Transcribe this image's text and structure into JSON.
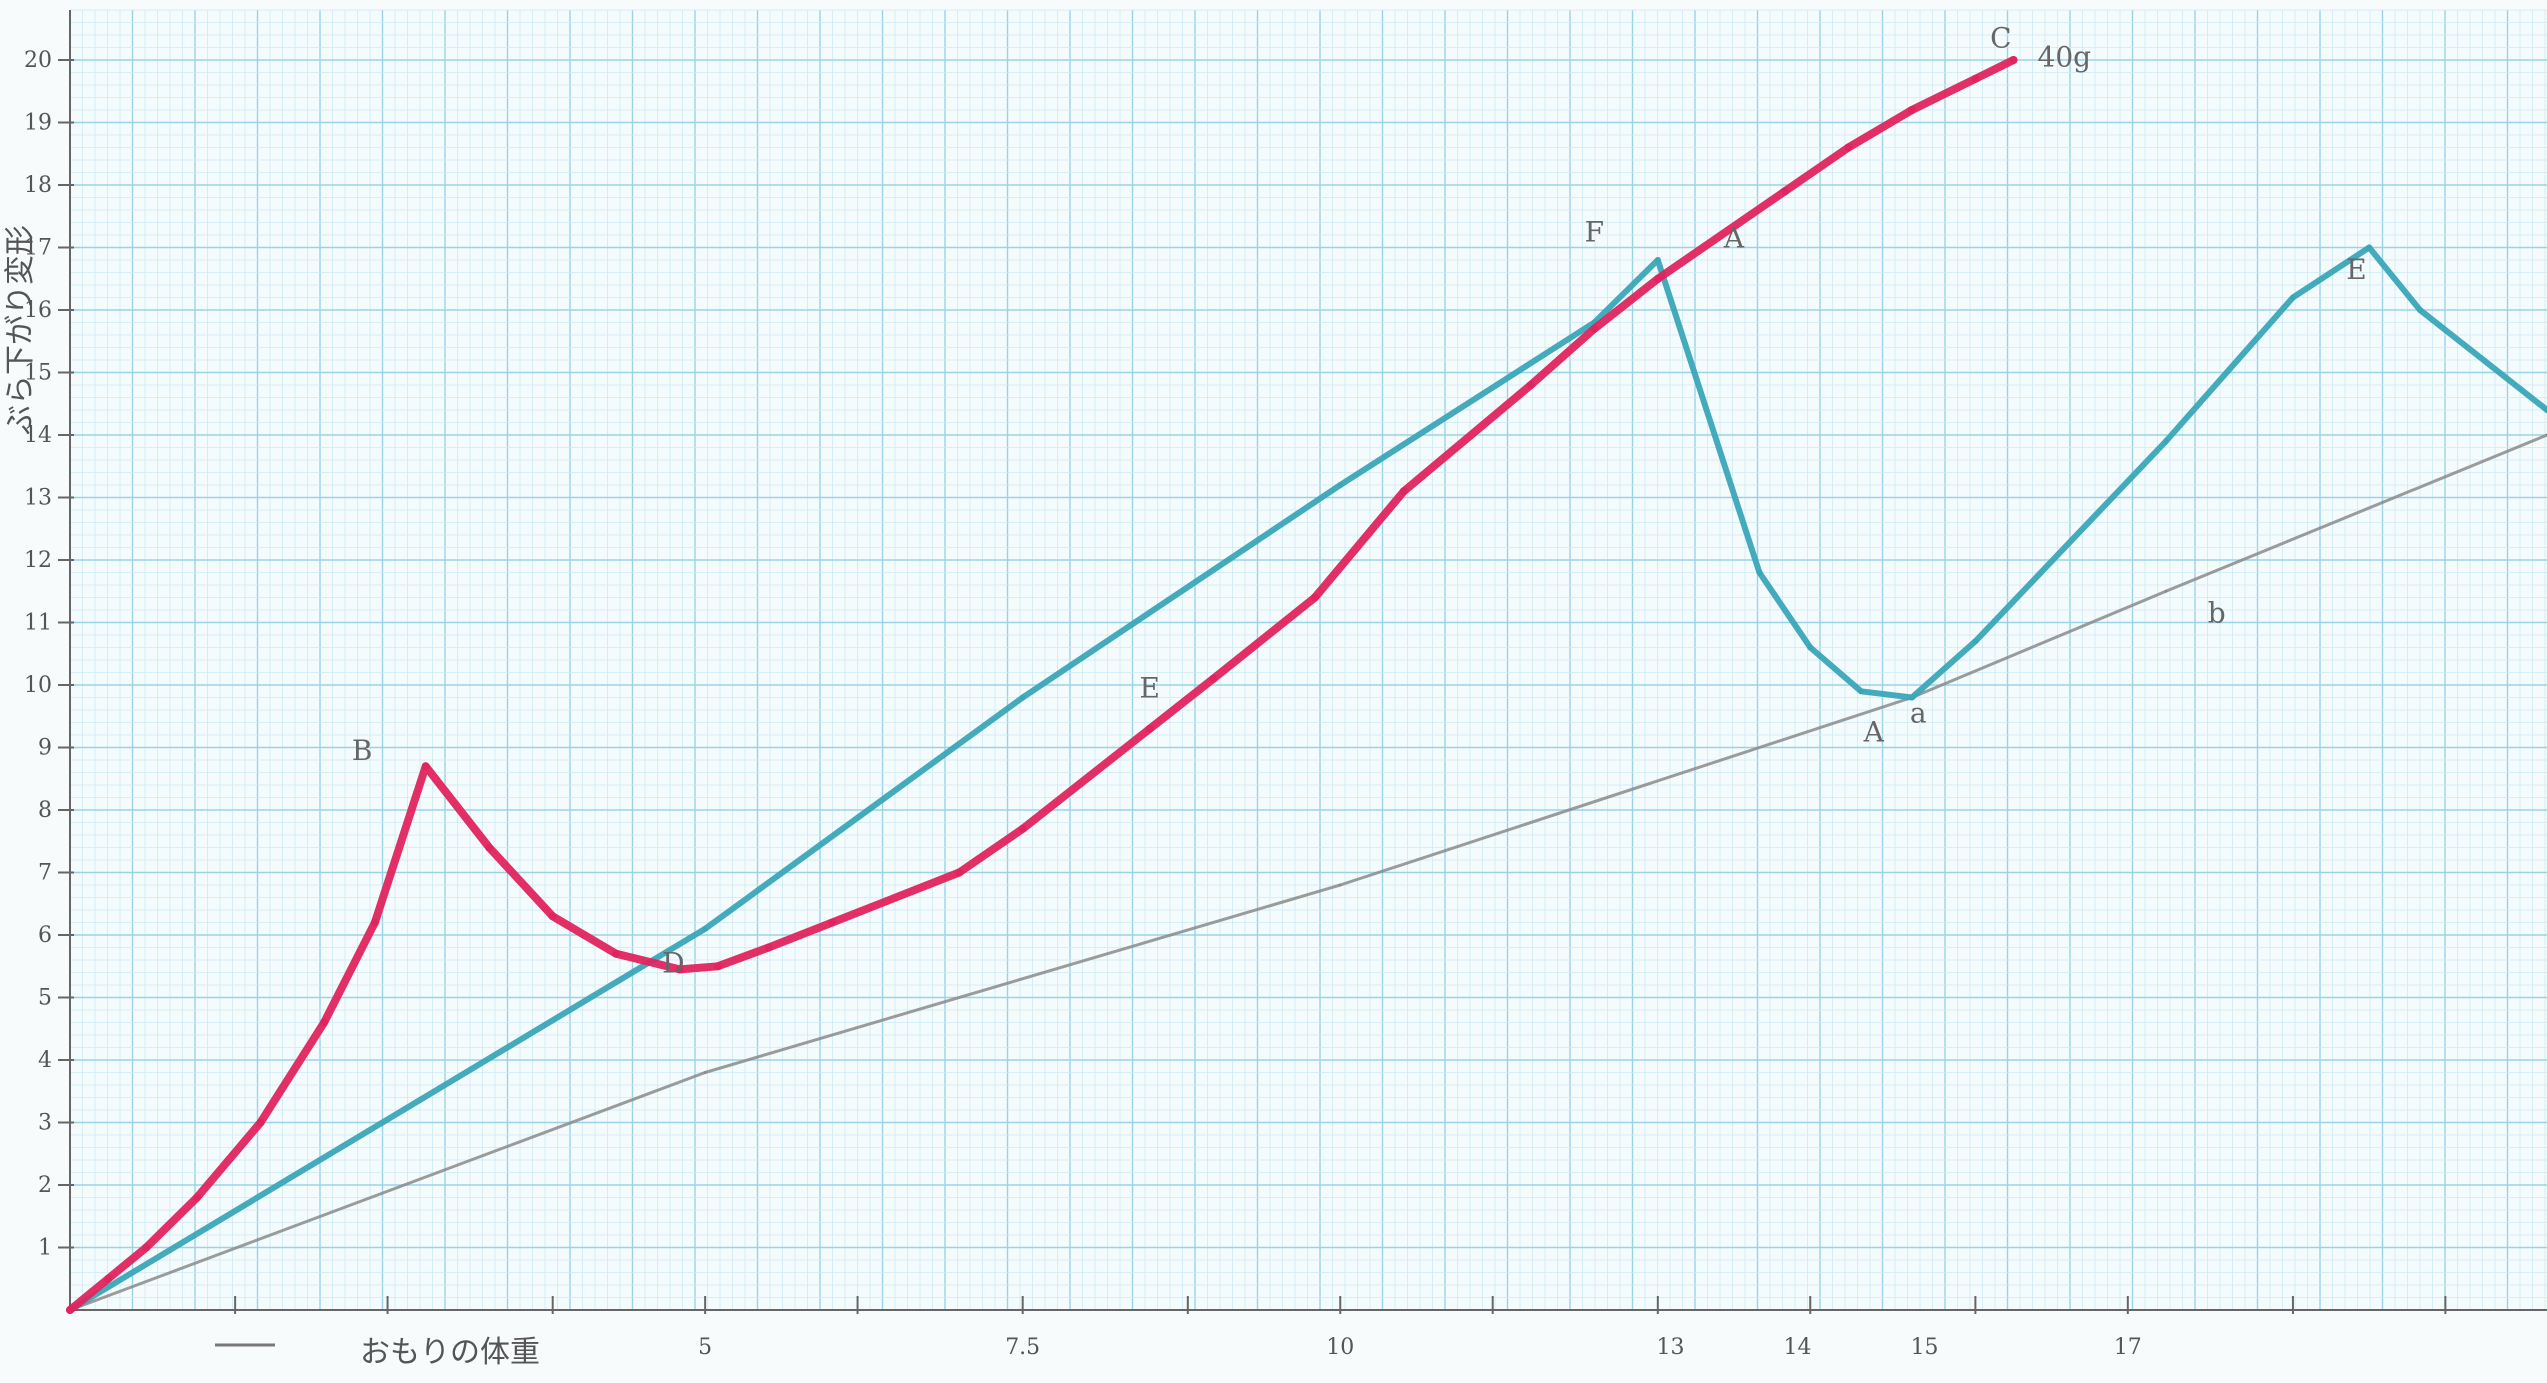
{
  "chart_data": {
    "type": "line",
    "ylabel": "ぶら下がり変形",
    "xlabel": "おもりの体重",
    "y_ticks": [
      "1",
      "2",
      "3",
      "4",
      "5",
      "6",
      "7",
      "8",
      "9",
      "10",
      "11",
      "12",
      "13",
      "14",
      "15",
      "16",
      "17",
      "18",
      "19",
      "20"
    ],
    "x_ticks": [
      "5",
      "7.5",
      "10",
      "13",
      "14",
      "15",
      "17"
    ],
    "xlim": [
      0,
      19.5
    ],
    "ylim": [
      0,
      20.8
    ],
    "grid": true,
    "colors": {
      "red": "#e0245e",
      "teal": "#3aa6b8",
      "gray": "#8a8a8a",
      "grid_minor": "#cfeaf3",
      "grid_major": "#9bd3e6"
    },
    "series": [
      {
        "id": "red",
        "color": "#e0245e",
        "x": [
          0,
          0.3,
          0.6,
          1.0,
          1.5,
          2.0,
          2.4,
          2.8,
          3.3,
          3.8,
          4.3,
          4.8,
          5.1,
          5.5,
          6.0,
          7.0,
          7.5,
          8.5,
          9.0,
          9.8,
          10.5,
          11.5,
          12.0,
          12.5,
          13.5,
          14.0,
          14.5,
          15.0,
          15.3
        ],
        "y": [
          0,
          0.5,
          1.0,
          1.8,
          3.0,
          4.6,
          6.2,
          8.7,
          7.4,
          6.3,
          5.7,
          5.45,
          5.5,
          5.8,
          6.2,
          7.0,
          7.7,
          9.3,
          10.1,
          11.4,
          13.1,
          14.8,
          15.7,
          16.5,
          17.9,
          18.6,
          19.2,
          19.7,
          20.0
        ]
      },
      {
        "id": "teal",
        "color": "#3aa6b8",
        "x": [
          0,
          5.0,
          7.5,
          10.0,
          12.0,
          12.5,
          13.3,
          13.7,
          14.1,
          14.5,
          15.0,
          16.5,
          17.5,
          18.1,
          18.5,
          19.5
        ],
        "y": [
          0,
          6.1,
          9.8,
          13.2,
          15.8,
          16.8,
          11.8,
          10.6,
          9.9,
          9.8,
          10.7,
          13.9,
          16.2,
          17.0,
          16.0,
          14.4
        ]
      },
      {
        "id": "gray",
        "color": "#8a8a8a",
        "x": [
          0,
          5.0,
          10.0,
          14.5,
          16.5,
          19.5
        ],
        "y": [
          0,
          3.8,
          6.8,
          9.8,
          11.5,
          14.0
        ]
      }
    ],
    "annotations": [
      {
        "text": "B",
        "x": 2.3,
        "y": 8.8
      },
      {
        "text": "D",
        "x": 4.75,
        "y": 5.4
      },
      {
        "text": "E",
        "x": 8.5,
        "y": 9.8
      },
      {
        "text": "F",
        "x": 12.0,
        "y": 17.1
      },
      {
        "text": "A",
        "x": 13.1,
        "y": 17.0
      },
      {
        "text": "C",
        "x": 15.2,
        "y": 20.2
      },
      {
        "text": "40g",
        "x": 15.7,
        "y": 19.9
      },
      {
        "text": "A",
        "x": 14.2,
        "y": 9.1
      },
      {
        "text": "a",
        "x": 14.55,
        "y": 9.4
      },
      {
        "text": "b",
        "x": 16.9,
        "y": 11.0
      },
      {
        "text": "E",
        "x": 18.0,
        "y": 16.5
      }
    ]
  }
}
